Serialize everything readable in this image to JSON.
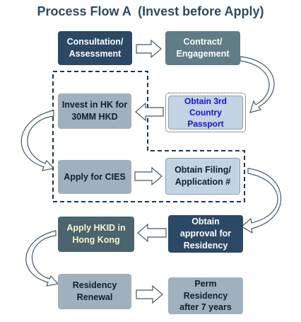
{
  "title": "Process Flow A  (Invest before Apply)",
  "steps": {
    "consultation": "Consultation/\nAssessment",
    "contract": "Contract/\nEngagement",
    "invest": "Invest in HK for\n30MM HKD",
    "passport": "Obtain 3rd\nCountry\nPassport",
    "apply_cies": "Apply for CIES",
    "filing": "Obtain Filing/\nApplication #",
    "approval": "Obtain\napproval for\nResidency",
    "hkid": "Apply HKID in\nHong Kong",
    "renewal": "Residency\nRenewal",
    "perm": "Perm\nResidency\nafter 7 years"
  },
  "colors": {
    "title": "#2e4a63",
    "dark_box": "#2b4865",
    "mid_box": "#5f7c87",
    "slate_box": "#4a6470",
    "gray_box": "#9fb1bc",
    "light_box": "#c3d3e2",
    "passport_text": "#1212e6",
    "hkid_text": "#fbf5c8",
    "dashed_region": "#1f3550"
  }
}
